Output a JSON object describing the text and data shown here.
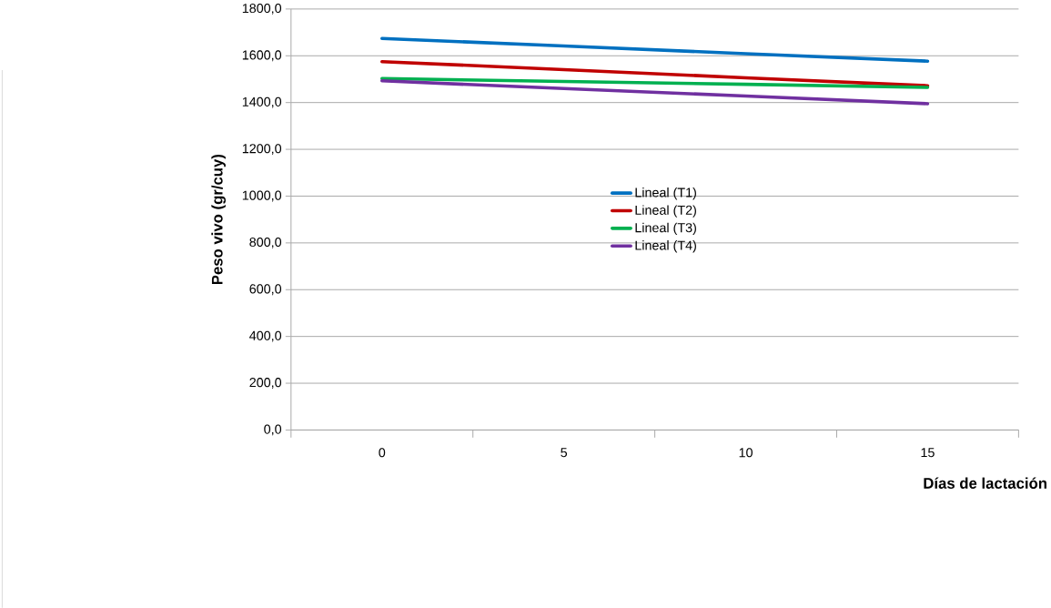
{
  "chart_data": {
    "type": "line",
    "xlabel": "Días de lactación",
    "ylabel": "Peso vivo (gr/cuy)",
    "categories": [
      "0",
      "5",
      "10",
      "15"
    ],
    "series": [
      {
        "name": "Lineal (T1)",
        "color": "#0070c0",
        "values": [
          1674,
          1642,
          1609,
          1577
        ]
      },
      {
        "name": "Lineal (T2)",
        "color": "#c00000",
        "values": [
          1575,
          1541,
          1506,
          1472
        ]
      },
      {
        "name": "Lineal (T3)",
        "color": "#00b050",
        "values": [
          1503,
          1490,
          1478,
          1465
        ]
      },
      {
        "name": "Lineal (T4)",
        "color": "#7030a0",
        "values": [
          1493,
          1460,
          1428,
          1395
        ]
      }
    ],
    "ylim": [
      0,
      1800
    ],
    "yticks": [
      {
        "value": 0,
        "label": "0,0"
      },
      {
        "value": 200,
        "label": "200,0"
      },
      {
        "value": 400,
        "label": "400,0"
      },
      {
        "value": 600,
        "label": "600,0"
      },
      {
        "value": 800,
        "label": "800,0"
      },
      {
        "value": 1000,
        "label": "1000,0"
      },
      {
        "value": 1200,
        "label": "1200,0"
      },
      {
        "value": 1400,
        "label": "1400,0"
      },
      {
        "value": 1600,
        "label": "1600,0"
      },
      {
        "value": 1800,
        "label": "1800,0"
      }
    ],
    "grid": "y",
    "legend": "center",
    "marker": "none",
    "line_style": "solid"
  }
}
